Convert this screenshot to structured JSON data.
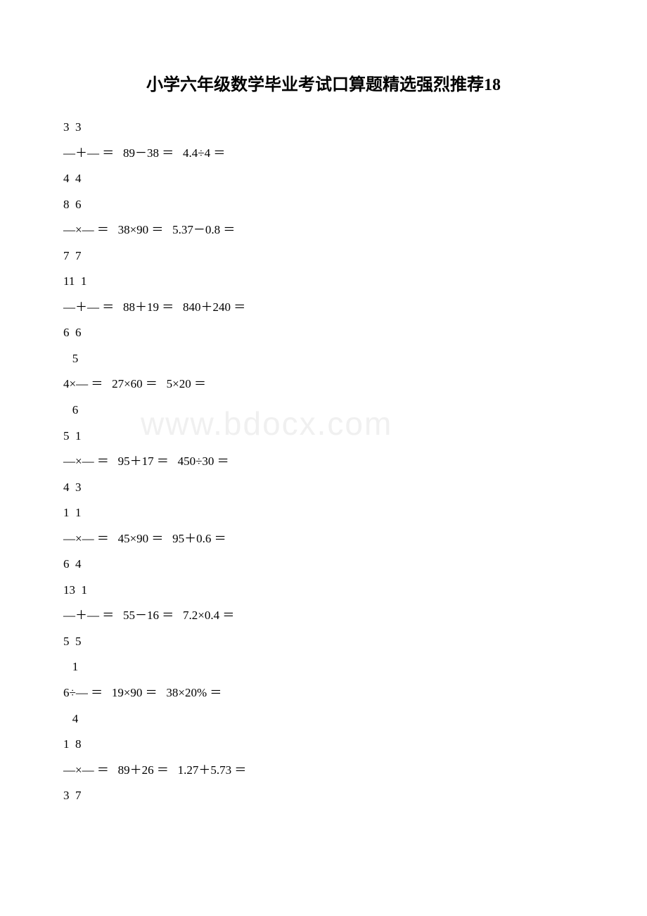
{
  "title": "小学六年级数学毕业考试口算题精选强烈推荐18",
  "watermark": "www.bdocx.com",
  "lines": [
    "3  3",
    "—＋— ＝   89－38 ＝   4.4÷4 ＝",
    "4  4",
    "8  6",
    "—×— ＝   38×90 ＝   5.37－0.8 ＝",
    "7  7",
    "11  1",
    "—＋— ＝   88＋19 ＝   840＋240 ＝",
    "6  6",
    "   5",
    "4×— ＝   27×60 ＝   5×20 ＝",
    "   6",
    "5  1",
    "—×— ＝   95＋17 ＝   450÷30 ＝",
    "4  3",
    "1  1",
    "—×— ＝   45×90 ＝   95＋0.6 ＝",
    "6  4",
    "13  1",
    "—＋— ＝   55－16 ＝   7.2×0.4 ＝",
    "5  5",
    "   1",
    "6÷— ＝   19×90 ＝   38×20% ＝",
    "   4",
    "1  8",
    "—×— ＝   89＋26 ＝   1.27＋5.73 ＝",
    "3  7"
  ],
  "colors": {
    "background": "#ffffff",
    "text": "#000000",
    "watermark": "#f0f0f0"
  },
  "fonts": {
    "title_size": 24,
    "body_size": 17,
    "watermark_size": 46
  }
}
